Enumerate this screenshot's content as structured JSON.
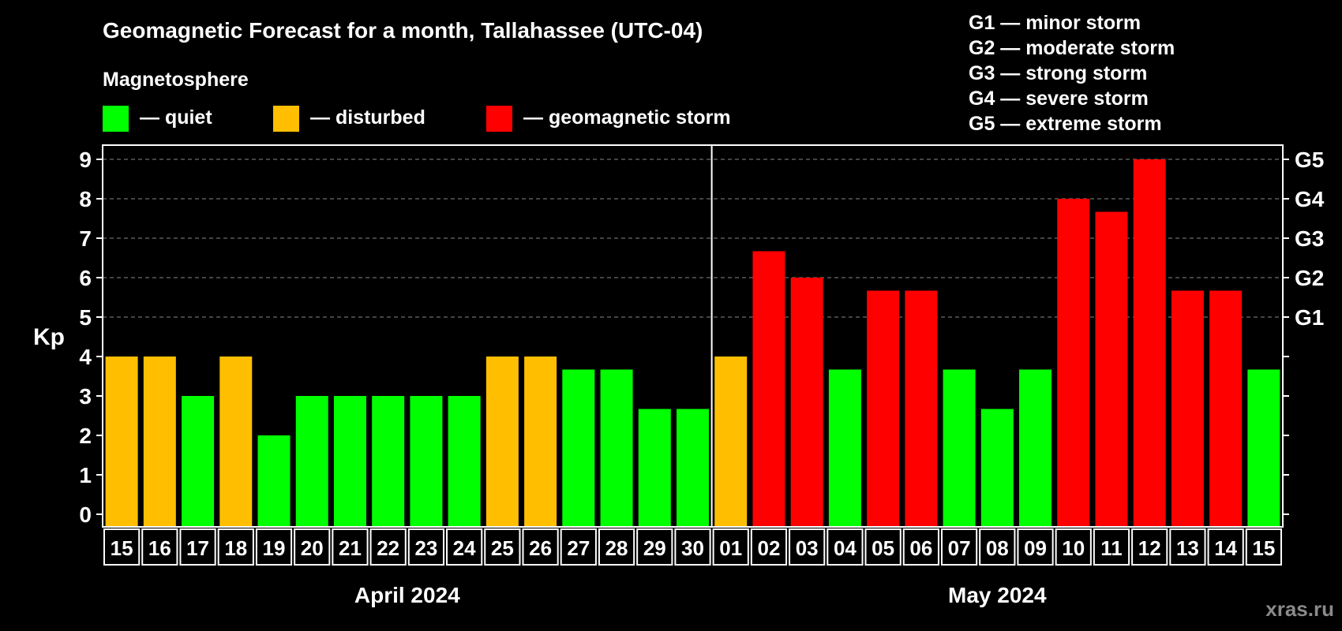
{
  "title": "Geomagnetic Forecast for a month, Tallahassee (UTC-04)",
  "legend": {
    "heading": "Magnetosphere",
    "items": [
      {
        "label": "— quiet",
        "color": "#00ff00"
      },
      {
        "label": "— disturbed",
        "color": "#ffbf00"
      },
      {
        "label": "— geomagnetic storm",
        "color": "#ff0000"
      }
    ]
  },
  "storm_scale": [
    "G1 — minor storm",
    "G2 — moderate storm",
    "G3 — strong storm",
    "G4 — severe storm",
    "G5 — extreme storm"
  ],
  "watermark": "xras.ru",
  "chart_data": {
    "type": "bar",
    "ylabel": "Kp",
    "ylim": [
      0,
      9
    ],
    "yticks": [
      "0",
      "1",
      "2",
      "3",
      "4",
      "5",
      "6",
      "7",
      "8",
      "9"
    ],
    "right_ticks": [
      {
        "value": 5,
        "label": "G1"
      },
      {
        "value": 6,
        "label": "G2"
      },
      {
        "value": 7,
        "label": "G3"
      },
      {
        "value": 8,
        "label": "G4"
      },
      {
        "value": 9,
        "label": "G5"
      }
    ],
    "grid": "dashed horizontal at 5-9",
    "months": [
      {
        "label": "April 2024",
        "days": [
          "15",
          "16",
          "17",
          "18",
          "19",
          "20",
          "21",
          "22",
          "23",
          "24",
          "25",
          "26",
          "27",
          "28",
          "29",
          "30"
        ]
      },
      {
        "label": "May 2024",
        "days": [
          "01",
          "02",
          "03",
          "04",
          "05",
          "06",
          "07",
          "08",
          "09",
          "10",
          "11",
          "12",
          "13",
          "14",
          "15"
        ]
      }
    ],
    "values": [
      4,
      4,
      3,
      4,
      2,
      3,
      3,
      3,
      3,
      3,
      4,
      4,
      3.67,
      3.67,
      2.67,
      2.67,
      4,
      6.67,
      6,
      3.67,
      5.67,
      5.67,
      3.67,
      2.67,
      3.67,
      8,
      7.67,
      9,
      5.67,
      5.67,
      3.67
    ],
    "status": [
      "disturbed",
      "disturbed",
      "quiet",
      "disturbed",
      "quiet",
      "quiet",
      "quiet",
      "quiet",
      "quiet",
      "quiet",
      "disturbed",
      "disturbed",
      "quiet",
      "quiet",
      "quiet",
      "quiet",
      "disturbed",
      "storm",
      "storm",
      "quiet",
      "storm",
      "storm",
      "quiet",
      "quiet",
      "quiet",
      "storm",
      "storm",
      "storm",
      "storm",
      "storm",
      "quiet"
    ]
  }
}
